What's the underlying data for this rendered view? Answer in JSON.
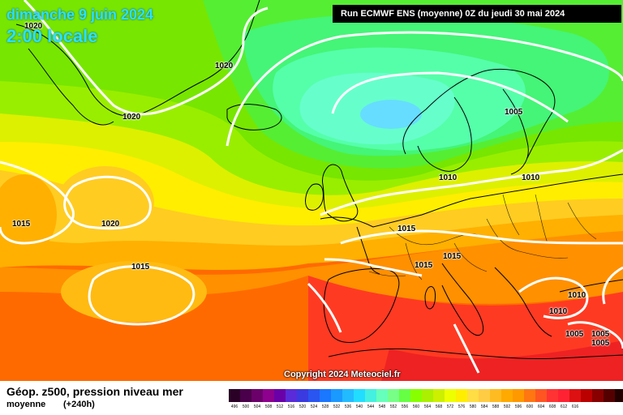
{
  "header": {
    "date_line": "dimanche 9 juin 2024",
    "time_line": "2:00 locale",
    "run_info": "Run ECMWF ENS (moyenne) 0Z du jeudi 30 mai 2024"
  },
  "copyright": "Copyright 2024 Meteociel.fr",
  "footer": {
    "variable": "Géop. z500, pression niveau mer",
    "mean_label": "moyenne",
    "lead_time": "(+240h)"
  },
  "isobar_labels": [
    "1020",
    "1020",
    "1020",
    "1005",
    "1010",
    "1010",
    "1015",
    "1020",
    "1015",
    "1015",
    "1015",
    "1015",
    "1010",
    "1010",
    "1005",
    "1005",
    "1005"
  ],
  "colors": {
    "scale": [
      "#2a0027",
      "#4a004a",
      "#6b006b",
      "#8e008e",
      "#6a00a8",
      "#5a2bd8",
      "#3a3ae0",
      "#2a55f0",
      "#1a77ff",
      "#1a99ff",
      "#22bbff",
      "#22ddff",
      "#44f0e0",
      "#66ffbb",
      "#77ff88",
      "#66ff44",
      "#88ff00",
      "#aaf000",
      "#ccf000",
      "#eeff00",
      "#ffee00",
      "#ffdd44",
      "#ffcc44",
      "#ffbb22",
      "#ffaa00",
      "#ff9900",
      "#ff7711",
      "#ff5522",
      "#ff3333",
      "#ff2233",
      "#dd1111",
      "#bb0000",
      "#880000",
      "#550000",
      "#220000"
    ],
    "scale_labels": [
      "496",
      "500",
      "504",
      "508",
      "512",
      "516",
      "520",
      "524",
      "528",
      "532",
      "536",
      "540",
      "544",
      "548",
      "552",
      "556",
      "560",
      "564",
      "568",
      "572",
      "576",
      "580",
      "584",
      "588",
      "592",
      "596",
      "600",
      "604",
      "608",
      "612",
      "616",
      "",
      "",
      "",
      ""
    ]
  }
}
